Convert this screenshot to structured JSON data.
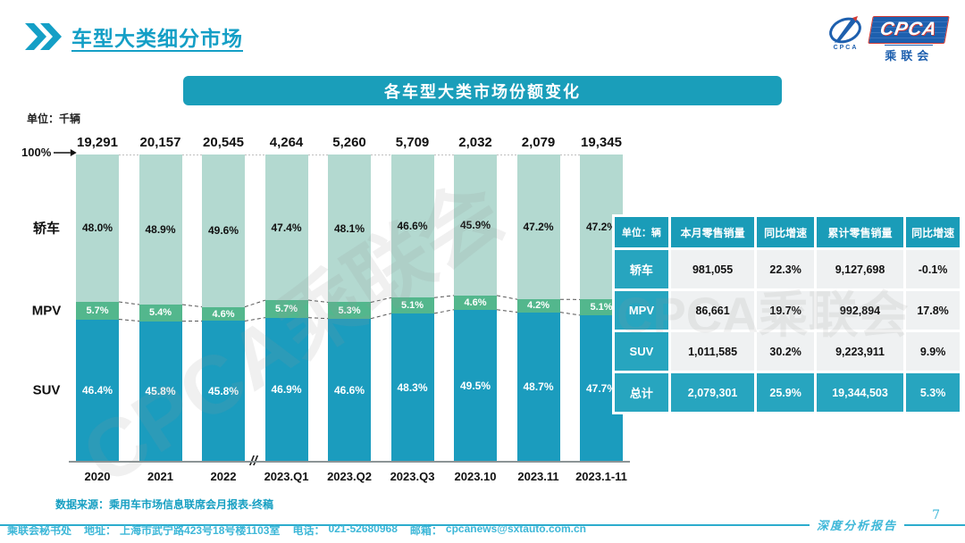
{
  "page": {
    "title": "车型大类细分市场",
    "page_number": "7",
    "report_type": "深度分析报告"
  },
  "logo": {
    "acronym": "CPCA",
    "name": "乘联会",
    "emblem_caption": "CPCA"
  },
  "banner": {
    "title": "各车型大类市场份额变化"
  },
  "chart": {
    "unit_label": "单位：千辆",
    "axis_100_label": "100%",
    "break_mark": "//",
    "source": "数据来源：乘用车市场信息联席会月报表-终稿"
  },
  "chart_data": {
    "type": "bar",
    "stacked": true,
    "percent_stacked": true,
    "title": "各车型大类市场份额变化",
    "unit": "千辆",
    "ylim": [
      0,
      100
    ],
    "categories": [
      "2020",
      "2021",
      "2022",
      "2023.Q1",
      "2023.Q2",
      "2023.Q3",
      "2023.10",
      "2023.11",
      "2023.1-11"
    ],
    "totals": [
      "19,291",
      "20,157",
      "20,545",
      "4,264",
      "5,260",
      "5,709",
      "2,032",
      "2,079",
      "19,345"
    ],
    "series": [
      {
        "name": "轿车",
        "color": "#b3d9d0",
        "label_color": "#111111",
        "values": [
          48.0,
          48.9,
          49.6,
          47.4,
          48.1,
          46.6,
          45.9,
          47.2,
          47.2
        ]
      },
      {
        "name": "MPV",
        "color": "#53b78d",
        "label_color": "#ffffff",
        "values": [
          5.7,
          5.4,
          4.6,
          5.7,
          5.3,
          5.1,
          4.6,
          4.2,
          5.1
        ]
      },
      {
        "name": "SUV",
        "color": "#1b9cbe",
        "label_color": "#ffffff",
        "values": [
          46.4,
          45.8,
          45.8,
          46.9,
          46.6,
          48.3,
          49.5,
          48.7,
          47.7
        ]
      }
    ],
    "legend_position": "left-row-labels",
    "axis_break_between": [
      "2022",
      "2023.Q1"
    ]
  },
  "table": {
    "headers": [
      "单位：辆",
      "本月零售销量",
      "同比增速",
      "累计零售销量",
      "同比增速"
    ],
    "rows": [
      {
        "label": "轿车",
        "cells": [
          "981,055",
          "22.3%",
          "9,127,698",
          "-0.1%"
        ],
        "highlight": false
      },
      {
        "label": "MPV",
        "cells": [
          "86,661",
          "19.7%",
          "992,894",
          "17.8%"
        ],
        "highlight": false
      },
      {
        "label": "SUV",
        "cells": [
          "1,011,585",
          "30.2%",
          "9,223,911",
          "9.9%"
        ],
        "highlight": false
      },
      {
        "label": "总计",
        "cells": [
          "2,079,301",
          "25.9%",
          "19,344,503",
          "5.3%"
        ],
        "highlight": true
      }
    ]
  },
  "footer": {
    "org": "乘联会秘书处",
    "address_label": "地址：",
    "address": "上海市武宁路423号18号楼1103室",
    "phone_label": "电话：",
    "phone": "021-52680968",
    "email_label": "邮箱：",
    "email": "cpcanews@sxtauto.com.cn"
  },
  "watermark": "CPCA乘联会",
  "colors": {
    "accent_teal": "#1a9eba",
    "title_teal": "#149fc6",
    "footer_teal": "#3db7d8",
    "logo_blue": "#1d5fae",
    "logo_red": "#d23b35",
    "table_header": "#1a9cb8",
    "table_label": "#27a5bf",
    "table_cell": "#eff1f2"
  }
}
